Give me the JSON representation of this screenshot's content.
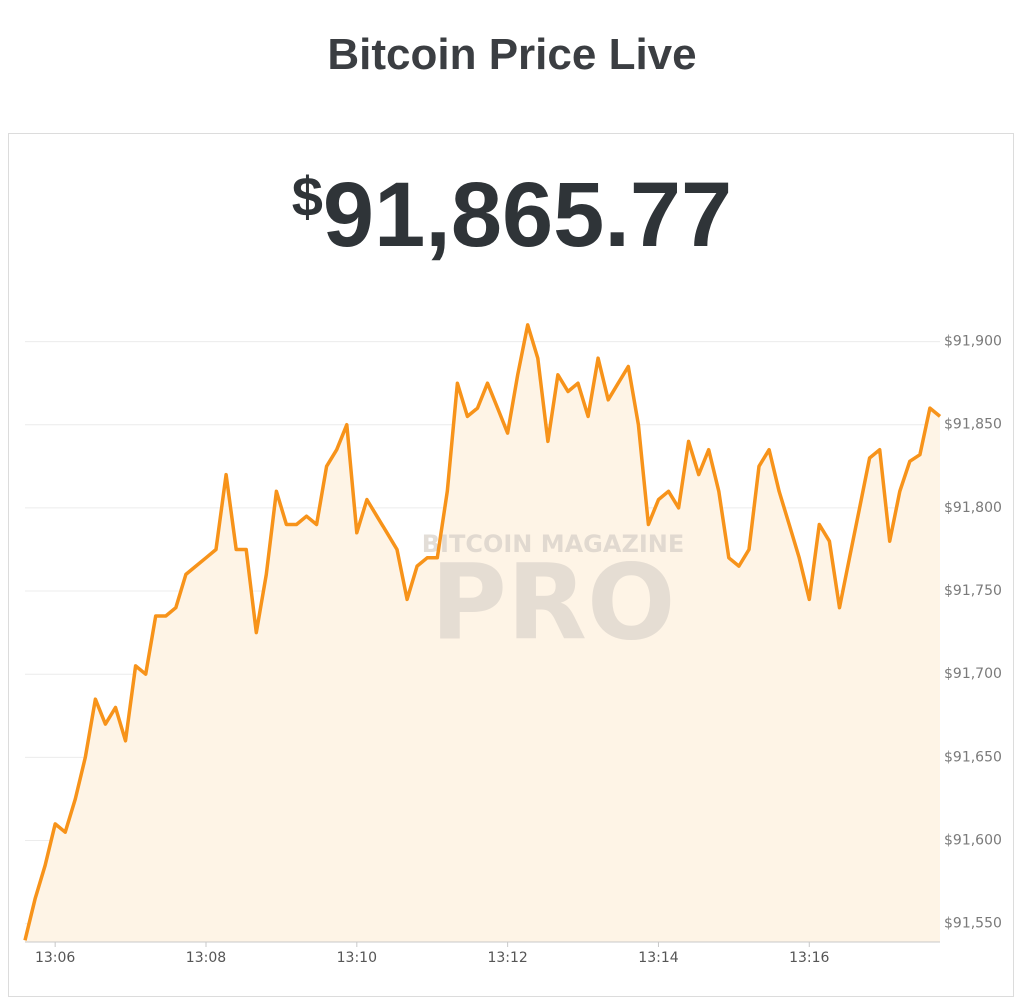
{
  "header": {
    "title": "Bitcoin Price Live"
  },
  "price": {
    "currency": "$",
    "amount": "91,865.77"
  },
  "chart_data": {
    "type": "line",
    "watermark": [
      "BITCOIN MAGAZINE",
      "PRO"
    ],
    "color": "#f7931a",
    "area_color": "#fef4e6",
    "grid": true,
    "xlim": [
      0,
      91
    ],
    "xticks": [
      {
        "value": 3,
        "label": "13:06"
      },
      {
        "value": 18,
        "label": "13:08"
      },
      {
        "value": 33,
        "label": "13:10"
      },
      {
        "value": 48,
        "label": "13:12"
      },
      {
        "value": 63,
        "label": "13:14"
      },
      {
        "value": 78,
        "label": "13:16"
      }
    ],
    "ylim": [
      91539,
      91925
    ],
    "yticks": [
      {
        "value": 91550,
        "label": "$91,550"
      },
      {
        "value": 91600,
        "label": "$91,600"
      },
      {
        "value": 91650,
        "label": "$91,650"
      },
      {
        "value": 91700,
        "label": "$91,700"
      },
      {
        "value": 91750,
        "label": "$91,750"
      },
      {
        "value": 91800,
        "label": "$91,800"
      },
      {
        "value": 91850,
        "label": "$91,850"
      },
      {
        "value": 91900,
        "label": "$91,900"
      }
    ],
    "values": [
      91540,
      91565,
      91585,
      91610,
      91605,
      91625,
      91650,
      91685,
      91670,
      91680,
      91660,
      91705,
      91700,
      91735,
      91735,
      91740,
      91760,
      91765,
      91770,
      91775,
      91820,
      91775,
      91775,
      91725,
      91760,
      91810,
      91790,
      91790,
      91795,
      91790,
      91825,
      91835,
      91850,
      91785,
      91805,
      91795,
      91785,
      91775,
      91745,
      91765,
      91770,
      91770,
      91810,
      91875,
      91855,
      91860,
      91875,
      91860,
      91845,
      91880,
      91910,
      91890,
      91840,
      91880,
      91870,
      91875,
      91855,
      91890,
      91865,
      91875,
      91885,
      91850,
      91790,
      91805,
      91810,
      91800,
      91840,
      91820,
      91835,
      91810,
      91770,
      91765,
      91775,
      91825,
      91835,
      91810,
      91790,
      91770,
      91745,
      91790,
      91780,
      91740,
      91770,
      91800,
      91830,
      91835,
      91780,
      91810,
      91828,
      91832,
      91860,
      91855
    ]
  }
}
